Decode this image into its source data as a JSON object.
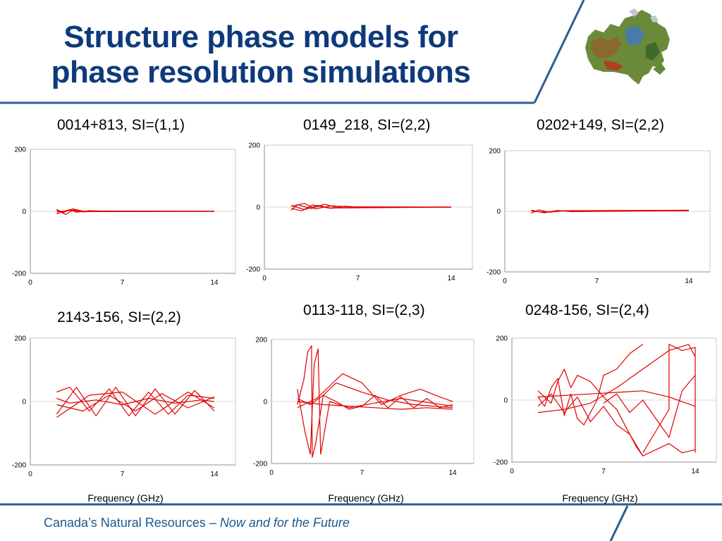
{
  "title": {
    "line1": "Structure phase models for",
    "line2": "phase resolution simulations"
  },
  "footer": {
    "text": "Canada’s Natural Resources – ",
    "tagline": "Now and for the Future"
  },
  "colors": {
    "title": "#0d3a7a",
    "accent_line": "#2c5f8f",
    "trace": "#e00000",
    "footer": "#1b5a8f"
  },
  "chart_data": [
    {
      "type": "line",
      "title": "0014+813, SI=(1,1)",
      "xlabel": "",
      "xlim": [
        0,
        14
      ],
      "ylim": [
        -200,
        200
      ],
      "xticks": [
        "0",
        "7",
        "14"
      ],
      "yticks": [
        "200",
        "0",
        "-200"
      ],
      "series": [
        {
          "x": [
            2,
            3,
            3.5,
            4.5,
            6,
            14
          ],
          "y": [
            -8,
            6,
            -3,
            2,
            0,
            0
          ]
        },
        {
          "x": [
            2,
            2.7,
            3.3,
            4,
            5,
            14
          ],
          "y": [
            4,
            -10,
            5,
            -2,
            1,
            0
          ]
        },
        {
          "x": [
            2,
            3,
            4,
            5,
            14
          ],
          "y": [
            -2,
            3,
            -1,
            1,
            0
          ]
        },
        {
          "x": [
            2,
            2.5,
            3.2,
            4.2,
            14
          ],
          "y": [
            6,
            -4,
            8,
            -1,
            0
          ]
        }
      ]
    },
    {
      "type": "line",
      "title": "0149_218, SI=(2,2)",
      "xlabel": "",
      "xlim": [
        0,
        14
      ],
      "ylim": [
        -200,
        200
      ],
      "xticks": [
        "0",
        "7",
        "14"
      ],
      "yticks": [
        "200",
        "0",
        "-200"
      ],
      "series": [
        {
          "x": [
            2,
            3,
            4,
            5,
            6,
            7,
            14
          ],
          "y": [
            5,
            -8,
            6,
            -4,
            3,
            0,
            0
          ]
        },
        {
          "x": [
            2,
            2.5,
            3.5,
            4.5,
            5.5,
            14
          ],
          "y": [
            -10,
            8,
            -5,
            9,
            -2,
            0
          ]
        },
        {
          "x": [
            2,
            3,
            3.8,
            5,
            6.5,
            14
          ],
          "y": [
            3,
            12,
            -6,
            4,
            1,
            0
          ]
        },
        {
          "x": [
            2,
            2.8,
            3.6,
            4.8,
            14
          ],
          "y": [
            -4,
            -12,
            7,
            -3,
            0
          ]
        }
      ]
    },
    {
      "type": "line",
      "title": "0202+149, SI=(2,2)",
      "xlabel": "",
      "xlim": [
        0,
        14
      ],
      "ylim": [
        -200,
        200
      ],
      "xticks": [
        "0",
        "7",
        "14"
      ],
      "yticks": [
        "200",
        "0",
        "-200"
      ],
      "series": [
        {
          "x": [
            2,
            3,
            4,
            5,
            14
          ],
          "y": [
            4,
            -5,
            3,
            -1,
            2
          ]
        },
        {
          "x": [
            2,
            2.6,
            3.4,
            4.5,
            14
          ],
          "y": [
            -6,
            5,
            -3,
            2,
            3
          ]
        },
        {
          "x": [
            2,
            3,
            4,
            14
          ],
          "y": [
            1,
            -2,
            1,
            4
          ]
        }
      ]
    },
    {
      "type": "line",
      "title": "2143-156, SI=(2,2)",
      "xlabel": "Frequency (GHz)",
      "xlim": [
        0,
        14
      ],
      "ylim": [
        -200,
        200
      ],
      "xticks": [
        "0",
        "7",
        "14"
      ],
      "yticks": [
        "200",
        "0",
        "-200"
      ],
      "series": [
        {
          "x": [
            2,
            3.5,
            5,
            6.5,
            8,
            9.5,
            11,
            12.5,
            14
          ],
          "y": [
            -40,
            45,
            -45,
            45,
            -45,
            40,
            -40,
            35,
            -30
          ]
        },
        {
          "x": [
            2,
            3,
            4.5,
            6,
            7.5,
            9,
            10.5,
            12,
            14
          ],
          "y": [
            30,
            45,
            -30,
            40,
            -45,
            30,
            -40,
            20,
            10
          ]
        },
        {
          "x": [
            2,
            4,
            6,
            8,
            10,
            12,
            14
          ],
          "y": [
            -10,
            -30,
            20,
            -30,
            25,
            -20,
            15
          ]
        },
        {
          "x": [
            2,
            3,
            5,
            7,
            9,
            11,
            13,
            14
          ],
          "y": [
            10,
            -5,
            5,
            -10,
            10,
            -5,
            5,
            0
          ]
        },
        {
          "x": [
            2,
            4.5,
            7,
            9.5,
            12,
            14
          ],
          "y": [
            -50,
            20,
            30,
            -40,
            30,
            -20
          ]
        }
      ]
    },
    {
      "type": "line",
      "title": "0113-118, SI=(2,3)",
      "xlabel": "Frequency (GHz)",
      "xlim": [
        0,
        14
      ],
      "ylim": [
        -200,
        200
      ],
      "xticks": [
        "0",
        "7",
        "14"
      ],
      "yticks": [
        "200",
        "0",
        "-200"
      ],
      "series": [
        {
          "x": [
            2,
            2.5,
            2.8,
            3.1,
            3.15,
            3.4,
            4,
            5,
            7,
            9,
            11,
            14
          ],
          "y": [
            -10,
            70,
            160,
            180,
            -180,
            -140,
            20,
            60,
            30,
            5,
            -10,
            -20
          ]
        },
        {
          "x": [
            2,
            2.6,
            3,
            3.3,
            3.6,
            3.8,
            4.5,
            6,
            8,
            10,
            14
          ],
          "y": [
            40,
            -100,
            -170,
            120,
            170,
            -170,
            0,
            -20,
            -5,
            10,
            -15
          ]
        },
        {
          "x": [
            2,
            3.5,
            4.5,
            5.5,
            7,
            8.5,
            10,
            11.5,
            13,
            14
          ],
          "y": [
            -20,
            10,
            50,
            90,
            60,
            -10,
            20,
            40,
            15,
            0
          ]
        },
        {
          "x": [
            2,
            3,
            4,
            5,
            6,
            7,
            8,
            9,
            10,
            11,
            12,
            13,
            14
          ],
          "y": [
            10,
            -10,
            20,
            0,
            -25,
            -15,
            20,
            -20,
            15,
            -20,
            10,
            -20,
            -10
          ]
        },
        {
          "x": [
            2,
            4,
            6,
            8,
            10,
            12,
            14
          ],
          "y": [
            0,
            -10,
            -15,
            -20,
            -25,
            -20,
            -25
          ]
        }
      ]
    },
    {
      "type": "line",
      "title": "0248-156, SI=(2,4)",
      "xlabel": "Frequency (GHz)",
      "xlim": [
        0,
        14
      ],
      "ylim": [
        -200,
        200
      ],
      "xticks": [
        "0",
        "7",
        "14"
      ],
      "yticks": [
        "200",
        "0",
        "-200"
      ],
      "series": [
        {
          "x": [
            2,
            2.5,
            3,
            3.5,
            4,
            4.5,
            5,
            5.5,
            6,
            6.5,
            7,
            8,
            9,
            10
          ],
          "y": [
            10,
            -20,
            40,
            70,
            -50,
            20,
            -60,
            -80,
            -40,
            0,
            80,
            100,
            150,
            180
          ]
        },
        {
          "x": [
            2,
            3,
            3.5,
            4,
            4.5,
            5,
            6,
            7,
            8,
            9.5,
            10,
            12,
            13,
            14
          ],
          "y": [
            30,
            -10,
            60,
            100,
            40,
            80,
            60,
            10,
            -30,
            -150,
            -180,
            -140,
            -170,
            -160
          ]
        },
        {
          "x": [
            2,
            3,
            4,
            5,
            6,
            7,
            8,
            9,
            10
          ],
          "y": [
            -20,
            20,
            -40,
            10,
            -70,
            -20,
            -80,
            -110,
            -180
          ]
        },
        {
          "x": [
            2,
            4,
            6,
            8,
            10,
            12,
            13.5,
            14
          ],
          "y": [
            -40,
            -30,
            -10,
            40,
            100,
            160,
            180,
            140
          ]
        },
        {
          "x": [
            2,
            4,
            6,
            8,
            10,
            12,
            14
          ],
          "y": [
            10,
            15,
            20,
            25,
            30,
            10,
            -20
          ]
        },
        {
          "x": [
            7,
            8,
            9,
            10,
            11,
            12,
            13,
            14
          ],
          "y": [
            -10,
            20,
            -40,
            0,
            -60,
            -120,
            30,
            80
          ]
        },
        {
          "x": [
            10,
            11,
            12,
            12,
            13,
            14,
            14
          ],
          "y": [
            -170,
            -100,
            -30,
            180,
            160,
            170,
            -170
          ]
        }
      ]
    }
  ]
}
